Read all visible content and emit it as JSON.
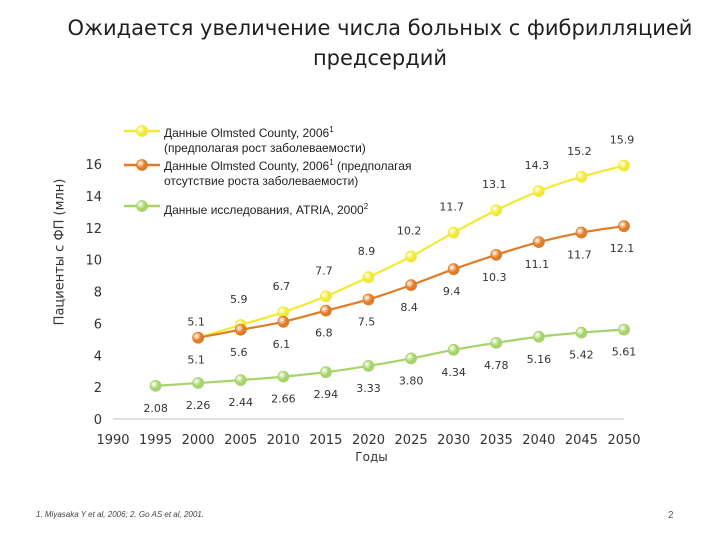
{
  "slide": {
    "title_line1": "Ожидается увеличение числа больных с фибрилляцией",
    "title_line2": "предсердий",
    "footnote": "1. Miyasaka Y et al, 2006; 2. Go AS et al, 2001.",
    "page_number": "2"
  },
  "legend": {
    "items": [
      {
        "line1": "Данные Olmsted County, 2006",
        "sup": "1",
        "line2": "(предполагая рост заболеваемости)"
      },
      {
        "line1": "Данные Olmsted County, 2006",
        "sup": "1",
        "line1_rest": " (предполагая",
        "line2": "отсутствие роста заболеваемости)"
      },
      {
        "line1": "Данные исследования, ATRIA, 2000",
        "sup": "2"
      }
    ]
  },
  "chart_data": {
    "type": "line",
    "xlabel": "Годы",
    "ylabel": "Пациенты с ФП (млн)",
    "ylim": [
      0,
      16
    ],
    "xlim": [
      1990,
      2050
    ],
    "x_ticks": [
      "1990",
      "1995",
      "2000",
      "2005",
      "2010",
      "2015",
      "2020",
      "2025",
      "2030",
      "2035",
      "2040",
      "2045",
      "2050"
    ],
    "y_ticks": [
      "0",
      "2",
      "4",
      "6",
      "8",
      "10",
      "12",
      "14",
      "16"
    ],
    "series": [
      {
        "name": "Данные Olmsted County, 2006 (предполагая рост заболеваемости)",
        "color": "#f2e933",
        "x": [
          2000,
          2005,
          2010,
          2015,
          2020,
          2025,
          2030,
          2035,
          2040,
          2045,
          2050
        ],
        "values": [
          5.1,
          5.9,
          6.7,
          7.7,
          8.9,
          10.2,
          11.7,
          13.1,
          14.3,
          15.2,
          15.9
        ],
        "labels": [
          "5.1",
          "5.9",
          "6.7",
          "7.7",
          "8.9",
          "10.2",
          "11.7",
          "13.1",
          "14.3",
          "15.2",
          "15.9"
        ]
      },
      {
        "name": "Данные Olmsted County, 2006 (предполагая отсутствие роста заболеваемости)",
        "color": "#e07b26",
        "x": [
          2000,
          2005,
          2010,
          2015,
          2020,
          2025,
          2030,
          2035,
          2040,
          2045,
          2050
        ],
        "values": [
          5.1,
          5.6,
          6.1,
          6.8,
          7.5,
          8.4,
          9.4,
          10.3,
          11.1,
          11.7,
          12.1
        ],
        "labels": [
          "5.1",
          "5.6",
          "6.1",
          "6.8",
          "7.5",
          "8.4",
          "9.4",
          "10.3",
          "11.1",
          "11.7",
          "12.1"
        ]
      },
      {
        "name": "Данные исследования, ATRIA, 2000",
        "color": "#a6d36a",
        "x": [
          1995,
          2000,
          2005,
          2010,
          2015,
          2020,
          2025,
          2030,
          2035,
          2040,
          2045,
          2050
        ],
        "values": [
          2.08,
          2.26,
          2.44,
          2.66,
          2.94,
          3.33,
          3.8,
          4.34,
          4.78,
          5.16,
          5.42,
          5.61
        ],
        "labels": [
          "2.08",
          "2.26",
          "2.44",
          "2.66",
          "2.94",
          "3.33",
          "3.80",
          "4.34",
          "4.78",
          "5.16",
          "5.42",
          "5.61"
        ]
      }
    ]
  }
}
